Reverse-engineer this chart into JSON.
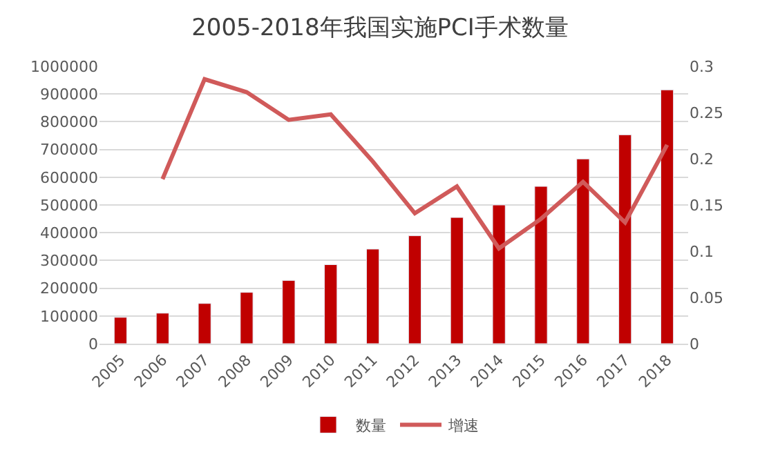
{
  "chart_data": {
    "type": "bar",
    "title": "2005-2018年我国实施PCI手术数量",
    "categories": [
      "2005",
      "2006",
      "2007",
      "2008",
      "2009",
      "2010",
      "2011",
      "2012",
      "2013",
      "2014",
      "2015",
      "2016",
      "2017",
      "2018"
    ],
    "series": [
      {
        "name": "数量",
        "color": "#c00000",
        "values": [
          95000,
          110000,
          145000,
          185000,
          228000,
          285000,
          341000,
          389000,
          455000,
          500000,
          567000,
          666000,
          753000,
          915000
        ]
      },
      {
        "name": "增速",
        "type": "line",
        "axis": "y2",
        "color": "#d05a5a",
        "values": [
          null,
          0.178,
          0.286,
          0.272,
          0.242,
          0.248,
          0.197,
          0.141,
          0.17,
          0.103,
          0.135,
          0.175,
          0.131,
          0.215
        ]
      }
    ],
    "ylim": [
      0,
      1000000
    ],
    "yticks": [
      0,
      100000,
      200000,
      300000,
      400000,
      500000,
      600000,
      700000,
      800000,
      900000,
      1000000
    ],
    "y2lim": [
      0,
      0.3
    ],
    "y2ticks": [
      0,
      0.05,
      0.1,
      0.15,
      0.2,
      0.25,
      0.3
    ],
    "grid": "y",
    "legend": "bottom",
    "marker": "none",
    "line_style": "solid"
  }
}
